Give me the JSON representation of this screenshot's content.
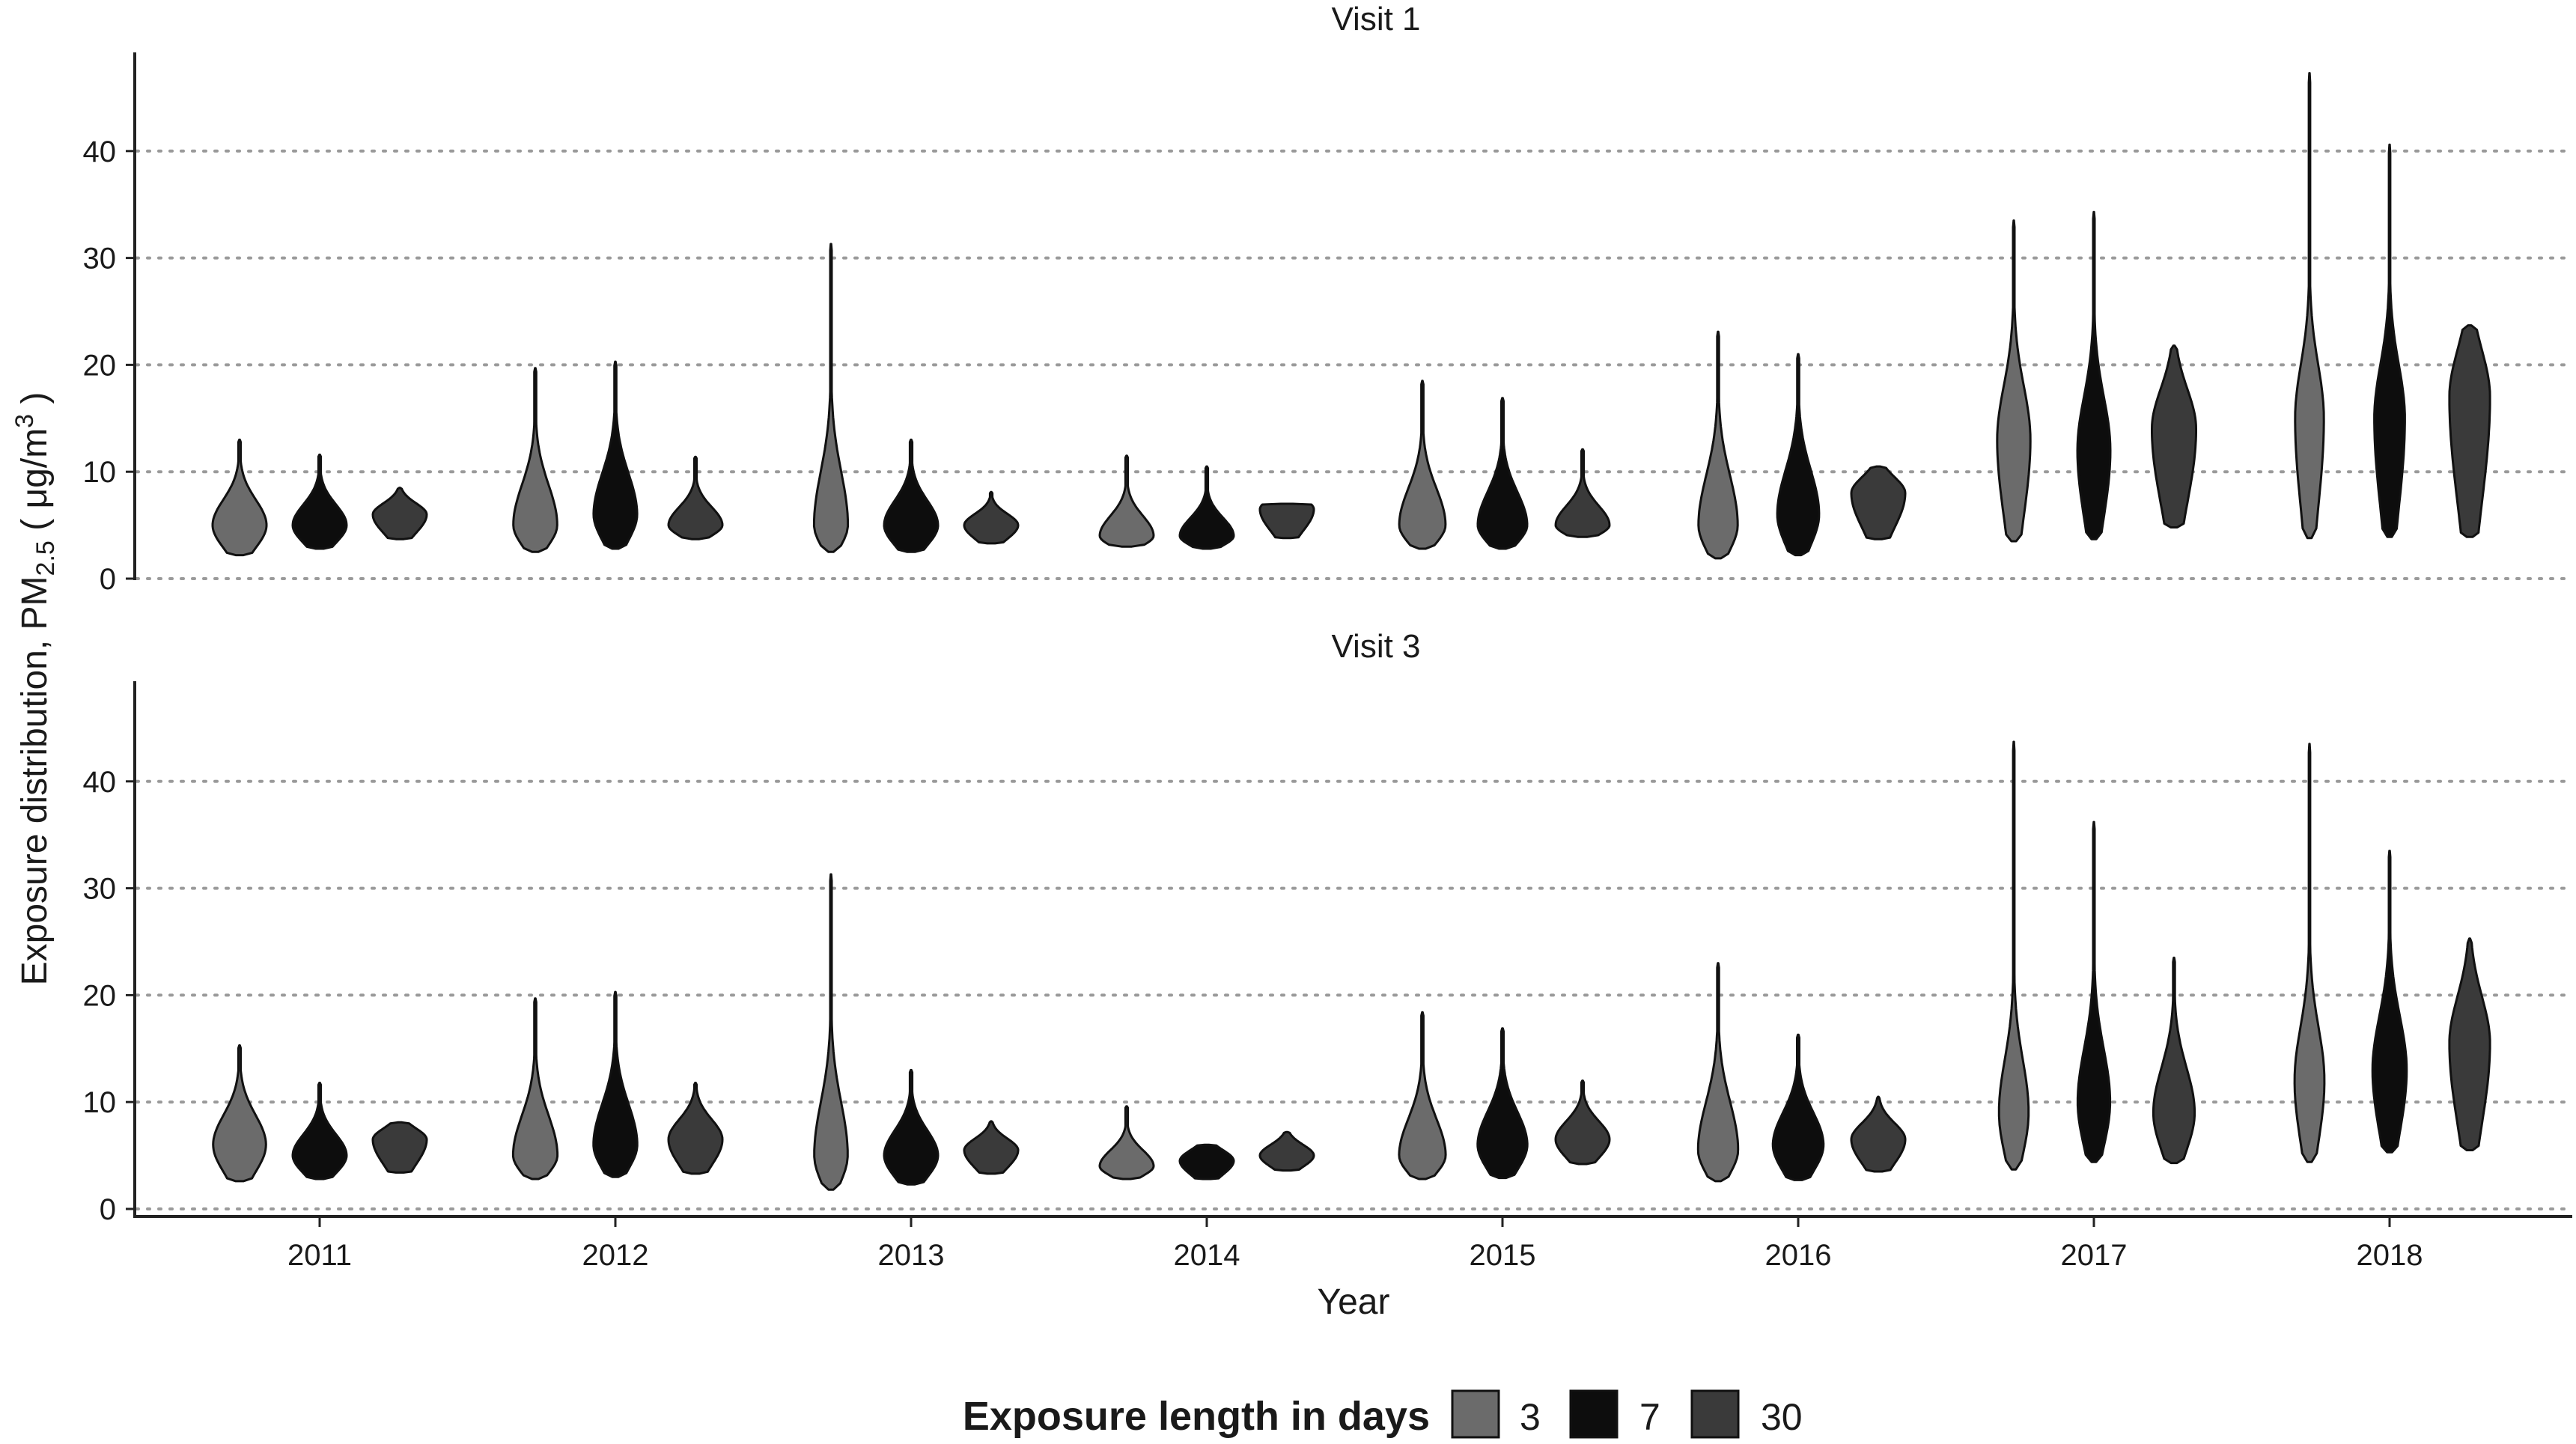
{
  "chart_data": {
    "type": "violin",
    "xlabel": "Year",
    "ylabel_main": "Exposure distribution, PM",
    "ylabel_sub": "2.5",
    "ylabel_unit_pre": " ( μg/m",
    "ylabel_unit_sup": "3",
    "ylabel_unit_post": " )",
    "categories": [
      "2011",
      "2012",
      "2013",
      "2014",
      "2015",
      "2016",
      "2017",
      "2018"
    ],
    "ylim": [
      0,
      48
    ],
    "yticks": [
      0,
      10,
      20,
      30,
      40
    ],
    "grid": "horizontal dotted",
    "legend": {
      "title": "Exposure length in days",
      "position": "bottom",
      "entries": [
        {
          "label": "3",
          "color": "#6b6b6b"
        },
        {
          "label": "7",
          "color": "#0d0d0d"
        },
        {
          "label": "30",
          "color": "#3a3a3a"
        }
      ]
    },
    "panels": [
      {
        "title": "Visit 1",
        "series": [
          {
            "name": "3",
            "violins": [
              {
                "min": 2.2,
                "max": 13.0,
                "mode": 5.0
              },
              {
                "min": 2.5,
                "max": 19.7,
                "mode": 5.0
              },
              {
                "min": 2.5,
                "max": 31.3,
                "mode": 5.0
              },
              {
                "min": 3.0,
                "max": 11.5,
                "mode": 4.0
              },
              {
                "min": 2.8,
                "max": 18.5,
                "mode": 5.0
              },
              {
                "min": 1.9,
                "max": 23.1,
                "mode": 5.0
              },
              {
                "min": 3.5,
                "max": 33.5,
                "mode": 13.0
              },
              {
                "min": 3.8,
                "max": 47.3,
                "mode": 15.0
              }
            ]
          },
          {
            "name": "7",
            "violins": [
              {
                "min": 2.8,
                "max": 11.6,
                "mode": 5.0
              },
              {
                "min": 2.8,
                "max": 20.3,
                "mode": 6.0
              },
              {
                "min": 2.5,
                "max": 13.0,
                "mode": 5.0
              },
              {
                "min": 2.8,
                "max": 10.5,
                "mode": 4.0
              },
              {
                "min": 2.8,
                "max": 16.9,
                "mode": 5.0
              },
              {
                "min": 2.2,
                "max": 21.0,
                "mode": 6.0
              },
              {
                "min": 3.7,
                "max": 34.3,
                "mode": 12.0
              },
              {
                "min": 3.9,
                "max": 40.6,
                "mode": 15.0
              }
            ]
          },
          {
            "name": "30",
            "violins": [
              {
                "min": 3.7,
                "max": 8.5,
                "mode": 6.0
              },
              {
                "min": 3.7,
                "max": 11.4,
                "mode": 5.0
              },
              {
                "min": 3.3,
                "max": 8.1,
                "mode": 5.0
              },
              {
                "min": 3.8,
                "max": 7.0,
                "mode": 6.5
              },
              {
                "min": 3.9,
                "max": 12.1,
                "mode": 5.0
              },
              {
                "min": 3.7,
                "max": 10.5,
                "mode": 8.0
              },
              {
                "min": 4.8,
                "max": 21.8,
                "mode": 14.0
              },
              {
                "min": 3.9,
                "max": 23.7,
                "mode": 17.0
              }
            ]
          }
        ]
      },
      {
        "title": "Visit 3",
        "series": [
          {
            "name": "3",
            "violins": [
              {
                "min": 2.6,
                "max": 15.3,
                "mode": 6.0
              },
              {
                "min": 2.8,
                "max": 19.7,
                "mode": 5.0
              },
              {
                "min": 1.8,
                "max": 31.3,
                "mode": 5.0
              },
              {
                "min": 2.8,
                "max": 9.6,
                "mode": 4.0
              },
              {
                "min": 2.8,
                "max": 18.4,
                "mode": 5.0
              },
              {
                "min": 2.6,
                "max": 23.0,
                "mode": 5.5
              },
              {
                "min": 3.7,
                "max": 43.7,
                "mode": 9.0
              },
              {
                "min": 4.4,
                "max": 43.5,
                "mode": 12.0
              }
            ]
          },
          {
            "name": "7",
            "violins": [
              {
                "min": 2.8,
                "max": 11.8,
                "mode": 5.0
              },
              {
                "min": 3.0,
                "max": 20.3,
                "mode": 6.0
              },
              {
                "min": 2.3,
                "max": 13.0,
                "mode": 5.0
              },
              {
                "min": 2.8,
                "max": 6.0,
                "mode": 4.5
              },
              {
                "min": 2.9,
                "max": 16.9,
                "mode": 6.0
              },
              {
                "min": 2.7,
                "max": 16.3,
                "mode": 6.0
              },
              {
                "min": 4.4,
                "max": 36.2,
                "mode": 10.0
              },
              {
                "min": 5.3,
                "max": 33.5,
                "mode": 13.0
              }
            ]
          },
          {
            "name": "30",
            "violins": [
              {
                "min": 3.4,
                "max": 8.1,
                "mode": 6.5
              },
              {
                "min": 3.3,
                "max": 11.8,
                "mode": 6.5
              },
              {
                "min": 3.3,
                "max": 8.2,
                "mode": 5.5
              },
              {
                "min": 3.6,
                "max": 7.2,
                "mode": 5.0
              },
              {
                "min": 4.2,
                "max": 12.0,
                "mode": 6.5
              },
              {
                "min": 3.5,
                "max": 10.5,
                "mode": 6.5
              },
              {
                "min": 4.3,
                "max": 23.5,
                "mode": 9.0
              },
              {
                "min": 5.5,
                "max": 25.3,
                "mode": 15.5
              }
            ]
          }
        ]
      }
    ]
  }
}
